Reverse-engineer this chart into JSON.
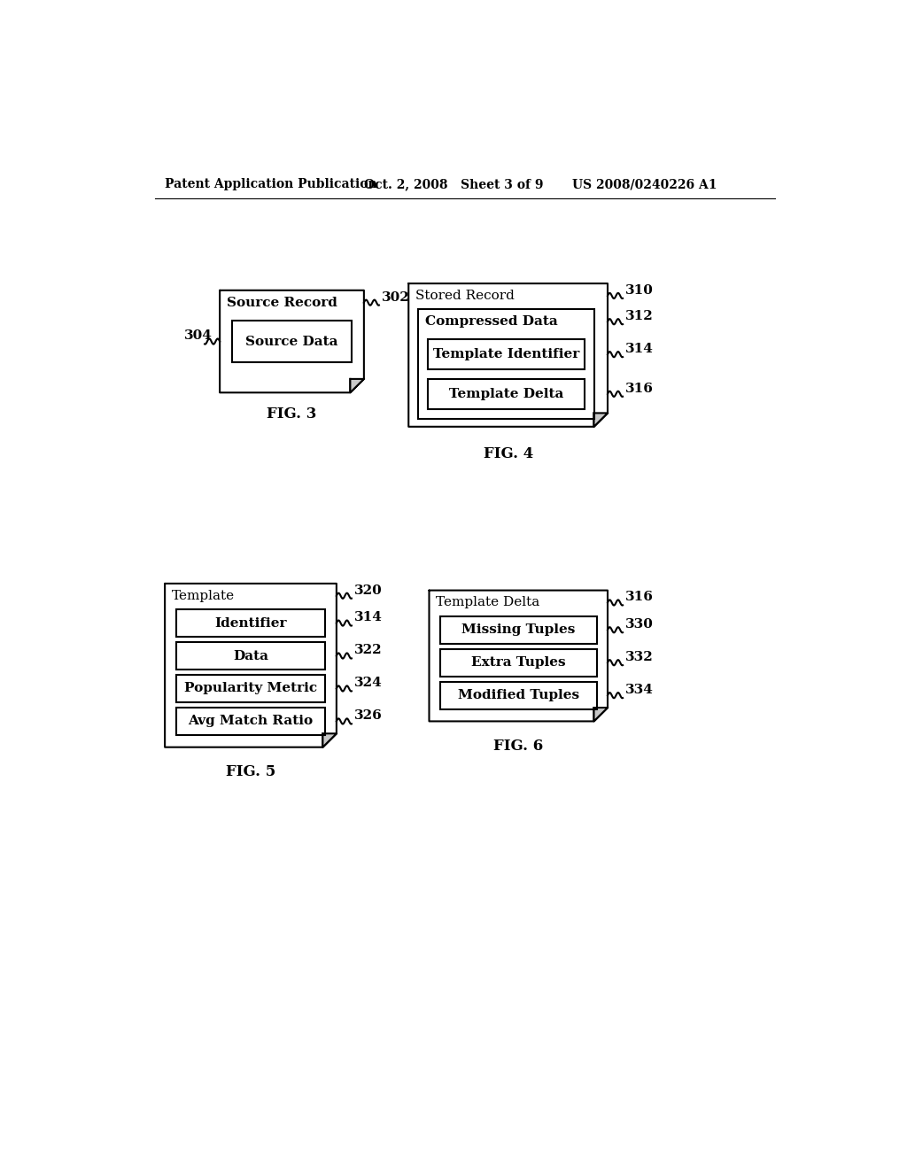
{
  "header_left": "Patent Application Publication",
  "header_mid": "Oct. 2, 2008   Sheet 3 of 9",
  "header_right": "US 2008/0240226 A1",
  "bg_color": "#ffffff",
  "fig3": {
    "label": "FIG. 3",
    "outer_title": "Source Record",
    "outer_ref": "302",
    "inner_label": "Source Data",
    "inner_ref": "304"
  },
  "fig4": {
    "label": "FIG. 4",
    "outer_title": "Stored Record",
    "outer_ref": "310",
    "compressed_label": "Compressed Data",
    "compressed_ref": "312",
    "items": [
      {
        "label": "Template Identifier",
        "ref": "314"
      },
      {
        "label": "Template Delta",
        "ref": "316"
      }
    ]
  },
  "fig5": {
    "label": "FIG. 5",
    "outer_title": "Template",
    "outer_ref": "320",
    "items": [
      {
        "label": "Identifier",
        "ref": "314"
      },
      {
        "label": "Data",
        "ref": "322"
      },
      {
        "label": "Popularity Metric",
        "ref": "324"
      },
      {
        "label": "Avg Match Ratio",
        "ref": "326"
      }
    ]
  },
  "fig6": {
    "label": "FIG. 6",
    "outer_title": "Template Delta",
    "outer_ref": "316",
    "items": [
      {
        "label": "Missing Tuples",
        "ref": "330"
      },
      {
        "label": "Extra Tuples",
        "ref": "332"
      },
      {
        "label": "Modified Tuples",
        "ref": "334"
      }
    ]
  }
}
